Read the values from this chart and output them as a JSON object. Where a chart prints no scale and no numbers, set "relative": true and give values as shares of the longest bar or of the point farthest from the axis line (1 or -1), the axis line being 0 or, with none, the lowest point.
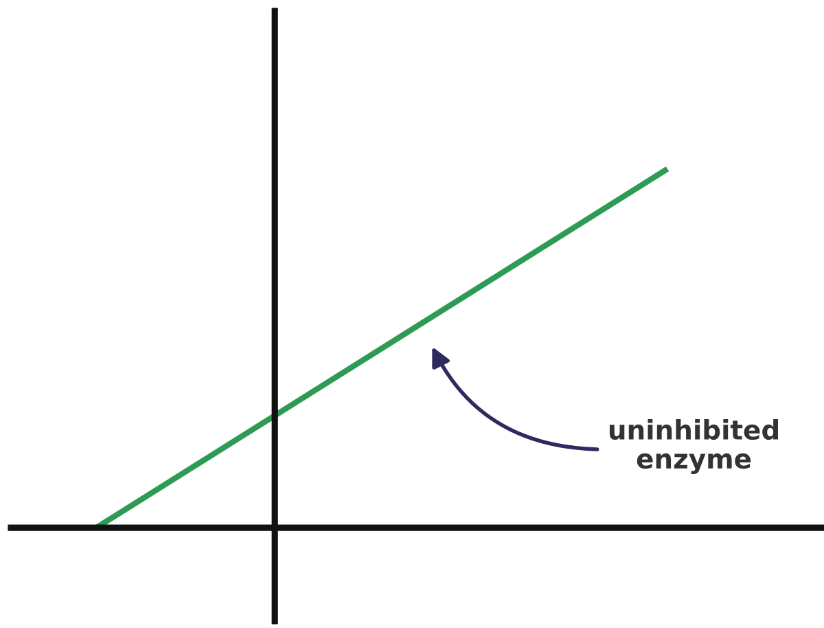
{
  "chart_data": {
    "type": "line",
    "relative": true,
    "categories": [
      null,
      null
    ],
    "series": [
      {
        "color": "#2e9b55",
        "values": [
          0,
          1
        ]
      }
    ],
    "annotations": [
      "uninhibited\nenzyme"
    ]
  }
}
